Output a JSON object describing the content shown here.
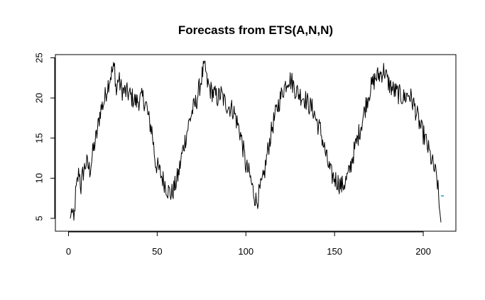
{
  "chart_data": {
    "type": "line",
    "title": "Forecasts from ETS(A,N,N)",
    "xlabel": "",
    "ylabel": "",
    "xlim": [
      1,
      210
    ],
    "ylim": [
      4.2,
      24.6
    ],
    "x_ticks": [
      0,
      50,
      100,
      150,
      200
    ],
    "y_ticks": [
      5,
      10,
      15,
      20,
      25
    ],
    "grid": false,
    "legend": "none",
    "series_color": "#000000",
    "forecast_color": "#2fa4c8",
    "keypoints": [
      [
        1,
        5.0
      ],
      [
        2,
        6.2
      ],
      [
        3,
        4.3
      ],
      [
        4,
        8.0
      ],
      [
        5,
        9.5
      ],
      [
        6,
        11.0
      ],
      [
        7,
        8.8
      ],
      [
        8,
        10.5
      ],
      [
        10,
        12.0
      ],
      [
        12,
        11.0
      ],
      [
        14,
        13.5
      ],
      [
        16,
        15.5
      ],
      [
        18,
        18.5
      ],
      [
        20,
        19.5
      ],
      [
        22,
        21.5
      ],
      [
        24,
        23.0
      ],
      [
        26,
        23.8
      ],
      [
        27,
        20.5
      ],
      [
        28,
        22.5
      ],
      [
        30,
        21.0
      ],
      [
        34,
        20.5
      ],
      [
        38,
        19.5
      ],
      [
        42,
        20.0
      ],
      [
        44,
        19.0
      ],
      [
        45,
        17.5
      ],
      [
        47,
        16.0
      ],
      [
        48,
        14.0
      ],
      [
        49,
        12.0
      ],
      [
        50,
        11.5
      ],
      [
        52,
        10.5
      ],
      [
        54,
        9.5
      ],
      [
        56,
        8.5
      ],
      [
        58,
        8.0
      ],
      [
        60,
        9.0
      ],
      [
        62,
        10.5
      ],
      [
        64,
        13.0
      ],
      [
        66,
        15.0
      ],
      [
        68,
        17.0
      ],
      [
        70,
        18.5
      ],
      [
        72,
        19.5
      ],
      [
        74,
        21.5
      ],
      [
        76,
        23.5
      ],
      [
        77,
        24.2
      ],
      [
        78,
        22.0
      ],
      [
        80,
        21.0
      ],
      [
        82,
        20.5
      ],
      [
        84,
        20.0
      ],
      [
        86,
        20.5
      ],
      [
        88,
        19.5
      ],
      [
        90,
        19.0
      ],
      [
        93,
        18.5
      ],
      [
        95,
        17.0
      ],
      [
        97,
        15.5
      ],
      [
        99,
        13.0
      ],
      [
        100,
        11.5
      ],
      [
        102,
        10.5
      ],
      [
        104,
        8.5
      ],
      [
        106,
        7.0
      ],
      [
        108,
        8.5
      ],
      [
        110,
        10.0
      ],
      [
        112,
        13.0
      ],
      [
        115,
        16.5
      ],
      [
        118,
        19.0
      ],
      [
        121,
        21.0
      ],
      [
        124,
        22.5
      ],
      [
        126,
        22.0
      ],
      [
        128,
        21.0
      ],
      [
        130,
        20.5
      ],
      [
        133,
        20.0
      ],
      [
        136,
        19.0
      ],
      [
        138,
        18.5
      ],
      [
        140,
        17.0
      ],
      [
        142,
        16.0
      ],
      [
        144,
        14.0
      ],
      [
        146,
        12.0
      ],
      [
        148,
        10.5
      ],
      [
        150,
        10.0
      ],
      [
        152,
        9.5
      ],
      [
        154,
        9.0
      ],
      [
        156,
        9.5
      ],
      [
        158,
        10.5
      ],
      [
        160,
        12.5
      ],
      [
        163,
        15.0
      ],
      [
        166,
        17.5
      ],
      [
        168,
        19.5
      ],
      [
        170,
        21.0
      ],
      [
        173,
        22.5
      ],
      [
        176,
        23.0
      ],
      [
        178,
        23.5
      ],
      [
        180,
        22.0
      ],
      [
        183,
        21.0
      ],
      [
        186,
        20.5
      ],
      [
        189,
        20.0
      ],
      [
        192,
        20.5
      ],
      [
        195,
        19.0
      ],
      [
        197,
        17.5
      ],
      [
        199,
        16.0
      ],
      [
        201,
        15.0
      ],
      [
        203,
        13.5
      ],
      [
        205,
        12.0
      ],
      [
        207,
        10.5
      ],
      [
        208,
        9.5
      ],
      [
        209,
        6.5
      ],
      [
        210,
        4.5
      ]
    ],
    "noise_amplitude": 1.3,
    "last_observed_x": 210,
    "forecast_value": 7.8
  }
}
